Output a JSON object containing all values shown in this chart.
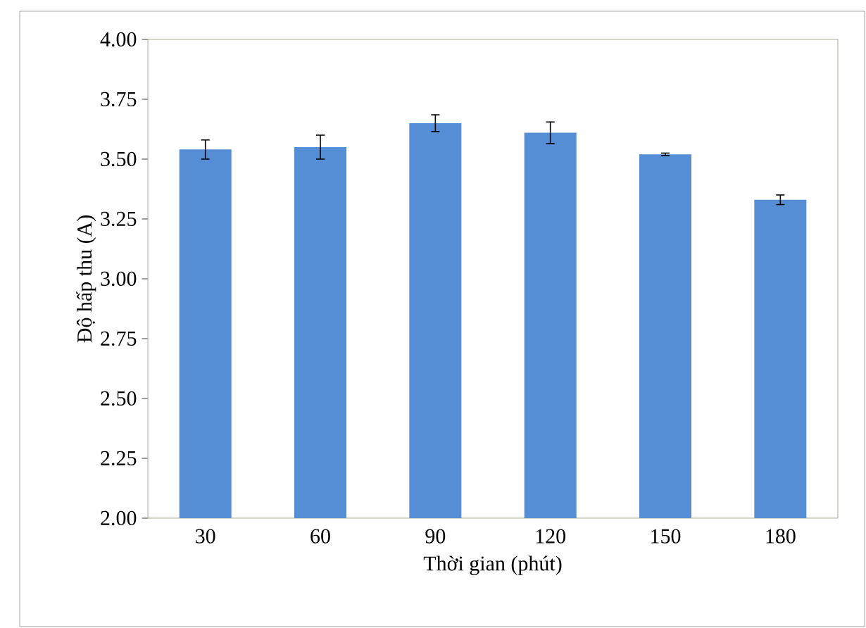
{
  "chart_data": {
    "type": "bar",
    "xlabel": "Thời gian (phút)",
    "ylabel": "Độ hấp thu (A)",
    "categories": [
      "30",
      "60",
      "90",
      "120",
      "150",
      "180"
    ],
    "values": [
      3.54,
      3.55,
      3.65,
      3.61,
      3.52,
      3.33
    ],
    "errors": [
      0.04,
      0.05,
      0.035,
      0.045,
      0.005,
      0.02
    ],
    "color": "#558ed5",
    "ylim": [
      2.0,
      4.0
    ],
    "yticks": [
      {
        "value": 2.0,
        "label": "2.00"
      },
      {
        "value": 2.25,
        "label": "2.25"
      },
      {
        "value": 2.5,
        "label": "2.50"
      },
      {
        "value": 2.75,
        "label": "2.75"
      },
      {
        "value": 3.0,
        "label": "3.00"
      },
      {
        "value": 3.25,
        "label": "3.25"
      },
      {
        "value": 3.5,
        "label": "3.50"
      },
      {
        "value": 3.75,
        "label": "3.75"
      },
      {
        "value": 4.0,
        "label": "4.00"
      }
    ],
    "grid": false
  }
}
